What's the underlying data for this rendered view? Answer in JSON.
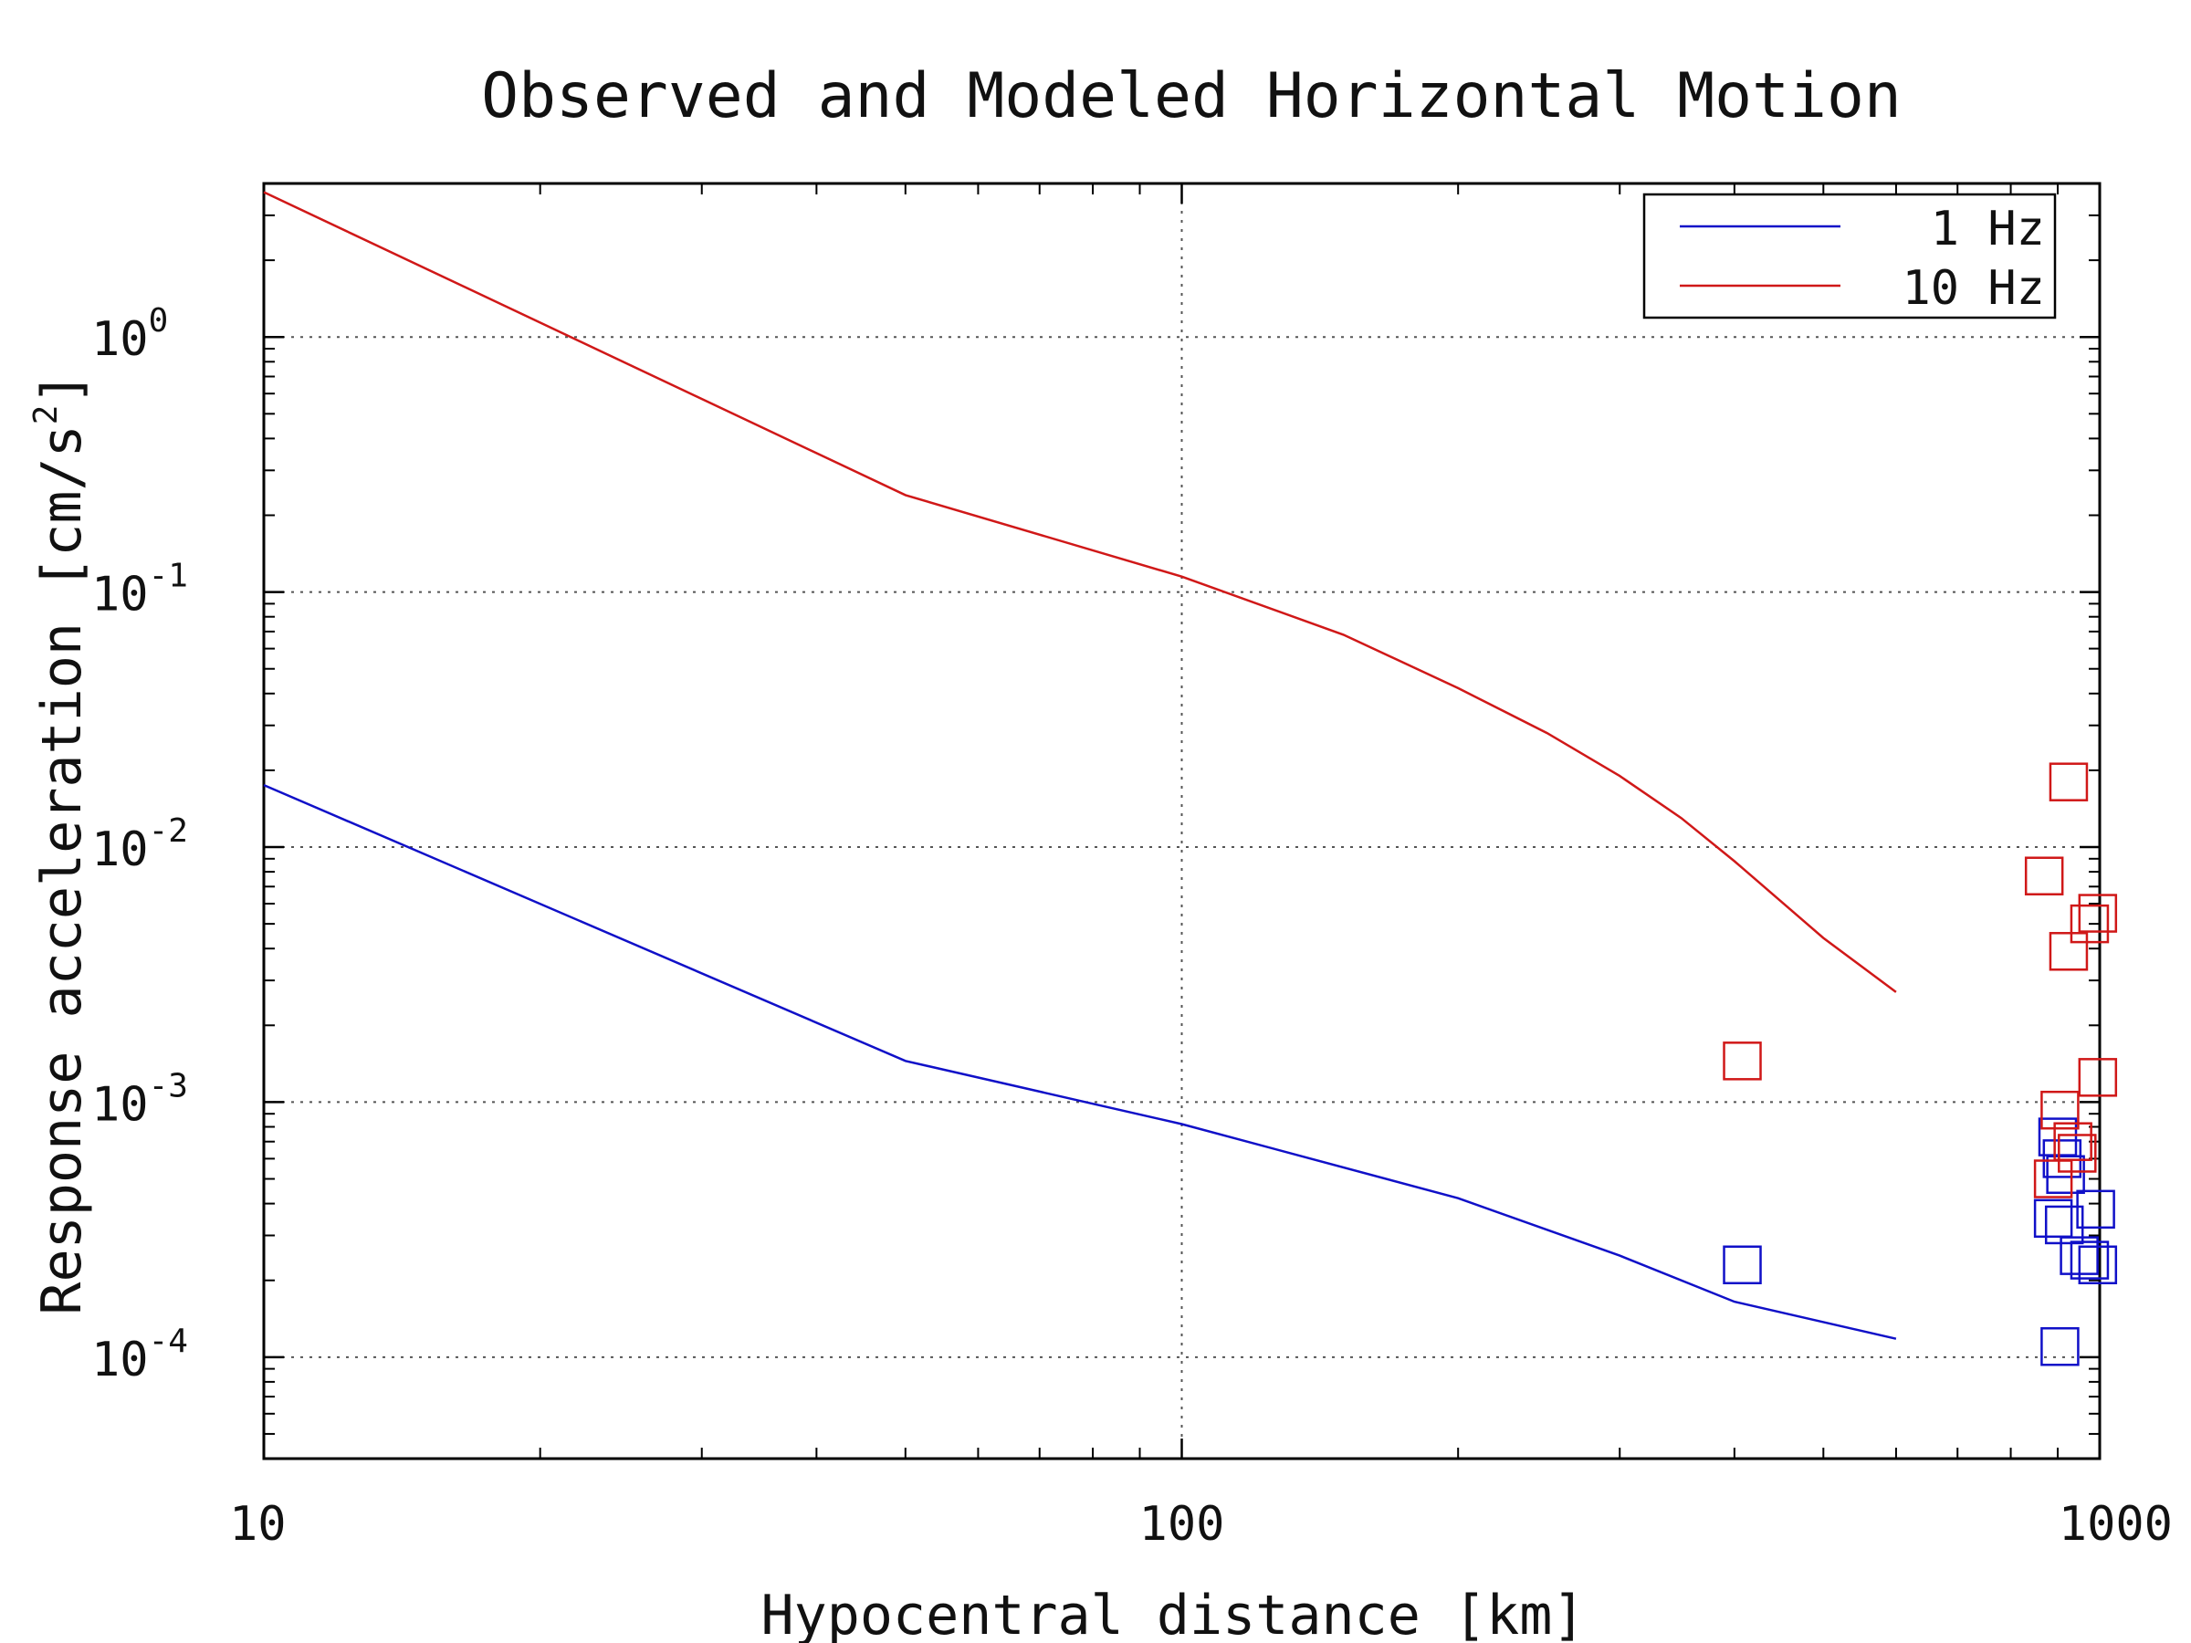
{
  "chart_data": {
    "type": "line",
    "title": "Observed and Modeled Horizontal Motion",
    "xlabel": "Hypocentral distance [km]",
    "ylabel": "Response acceleration [cm/s",
    "ylabel_sup": "2",
    "ylabel_end": "]",
    "x_scale": "log",
    "y_scale": "log",
    "xlim": [
      10,
      1000
    ],
    "ylim": [
      4e-05,
      4
    ],
    "x_ticks": [
      {
        "value": 10,
        "label": "10"
      },
      {
        "value": 100,
        "label": "100"
      },
      {
        "value": 1000,
        "label": "1000"
      }
    ],
    "y_ticks": [
      {
        "value": 1,
        "base": "10",
        "exp": "0"
      },
      {
        "value": 0.1,
        "base": "10",
        "exp": "-1"
      },
      {
        "value": 0.01,
        "base": "10",
        "exp": "-2"
      },
      {
        "value": 0.001,
        "base": "10",
        "exp": "-3"
      },
      {
        "value": 0.0001,
        "base": "10",
        "exp": "-4"
      }
    ],
    "grid": true,
    "legend_position": "top-right",
    "series": [
      {
        "name": "1 Hz",
        "color": "#1010c8",
        "line": [
          [
            10,
            0.0175
          ],
          [
            50,
            0.00145
          ],
          [
            100,
            0.00082
          ],
          [
            200,
            0.00042
          ],
          [
            300,
            0.00025
          ],
          [
            400,
            0.000165
          ],
          [
            600,
            0.000118
          ]
        ],
        "points": [
          [
            408,
            0.00023
          ],
          [
            890,
            0.00035
          ],
          [
            915,
            0.00033
          ],
          [
            900,
            0.00073
          ],
          [
            910,
            0.0006
          ],
          [
            918,
            0.00052
          ],
          [
            950,
            0.00025
          ],
          [
            975,
            0.00024
          ],
          [
            990,
            0.00038
          ],
          [
            995,
            0.00023
          ],
          [
            905,
            0.00011
          ]
        ]
      },
      {
        "name": "10 Hz",
        "color": "#d01818",
        "line": [
          [
            10,
            3.7
          ],
          [
            50,
            0.24
          ],
          [
            100,
            0.115
          ],
          [
            150,
            0.068
          ],
          [
            200,
            0.042
          ],
          [
            250,
            0.028
          ],
          [
            300,
            0.019
          ],
          [
            350,
            0.013
          ],
          [
            400,
            0.0088
          ],
          [
            500,
            0.0044
          ],
          [
            600,
            0.0027
          ]
        ],
        "points": [
          [
            408,
            0.00145
          ],
          [
            870,
            0.0077
          ],
          [
            925,
            0.018
          ],
          [
            925,
            0.0039
          ],
          [
            975,
            0.005
          ],
          [
            995,
            0.0055
          ],
          [
            995,
            0.00125
          ],
          [
            905,
            0.00093
          ],
          [
            935,
            0.0007
          ],
          [
            945,
            0.00063
          ],
          [
            890,
            0.0005
          ]
        ]
      }
    ]
  }
}
